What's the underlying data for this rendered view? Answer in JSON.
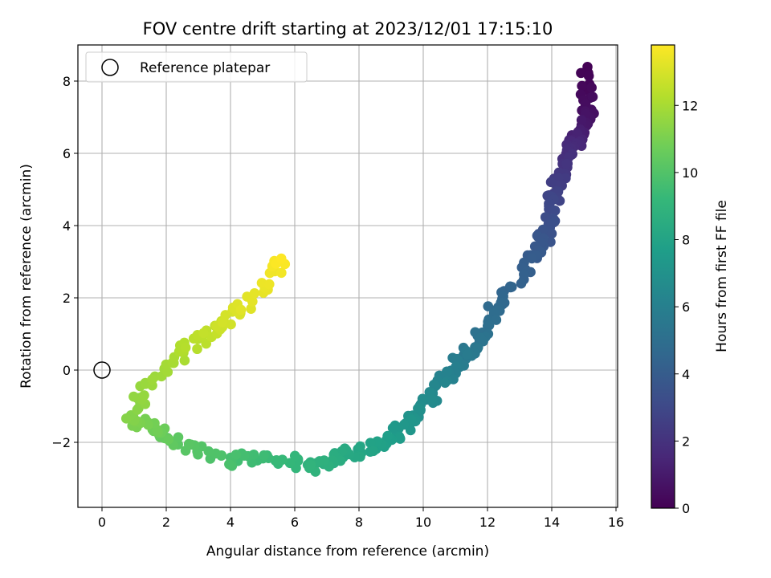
{
  "chart_data": {
    "type": "scatter",
    "title": "FOV centre drift starting at 2023/12/01 17:15:10",
    "xlabel": "Angular distance from reference (arcmin)",
    "ylabel": "Rotation from reference (arcmin)",
    "xlim": [
      -0.75,
      16.05
    ],
    "ylim": [
      -3.8,
      9.0
    ],
    "xticks": [
      0,
      2,
      4,
      6,
      8,
      10,
      12,
      14,
      16
    ],
    "yticks": [
      -2,
      0,
      2,
      4,
      6,
      8
    ],
    "xtick_labels": [
      "0",
      "2",
      "4",
      "6",
      "8",
      "10",
      "12",
      "14",
      "16"
    ],
    "ytick_labels": [
      "−2",
      "0",
      "2",
      "4",
      "6",
      "8"
    ],
    "grid": true,
    "legend": {
      "position": "top-left",
      "entries": [
        "Reference platepar"
      ]
    },
    "reference_point": {
      "x": 0,
      "y": 0,
      "label": "Reference platepar"
    },
    "colormap": "viridis",
    "colorbar": {
      "label": "Hours from first FF file",
      "range": [
        0,
        13.8
      ],
      "ticks": [
        0,
        2,
        4,
        6,
        8,
        10,
        12
      ],
      "tick_labels": [
        "0",
        "2",
        "4",
        "6",
        "8",
        "10",
        "12"
      ]
    },
    "path_waypoints": [
      {
        "h": 0.0,
        "x": 15.05,
        "y": 8.3
      },
      {
        "h": 0.6,
        "x": 15.1,
        "y": 7.1
      },
      {
        "h": 1.2,
        "x": 14.85,
        "y": 6.5
      },
      {
        "h": 1.8,
        "x": 14.6,
        "y": 6.0
      },
      {
        "h": 2.6,
        "x": 14.1,
        "y": 5.0
      },
      {
        "h": 3.3,
        "x": 13.95,
        "y": 4.1
      },
      {
        "h": 4.0,
        "x": 13.4,
        "y": 3.0
      },
      {
        "h": 4.6,
        "x": 12.4,
        "y": 1.9
      },
      {
        "h": 5.2,
        "x": 11.8,
        "y": 0.9
      },
      {
        "h": 6.0,
        "x": 10.9,
        "y": 0.0
      },
      {
        "h": 6.8,
        "x": 9.9,
        "y": -1.1
      },
      {
        "h": 7.6,
        "x": 9.0,
        "y": -1.9
      },
      {
        "h": 8.3,
        "x": 7.7,
        "y": -2.3
      },
      {
        "h": 8.9,
        "x": 6.5,
        "y": -2.7
      },
      {
        "h": 9.3,
        "x": 5.3,
        "y": -2.4
      },
      {
        "h": 9.8,
        "x": 3.8,
        "y": -2.5
      },
      {
        "h": 10.3,
        "x": 2.2,
        "y": -2.0
      },
      {
        "h": 10.8,
        "x": 1.6,
        "y": -1.6
      },
      {
        "h": 11.2,
        "x": 0.8,
        "y": -1.3
      },
      {
        "h": 11.6,
        "x": 1.3,
        "y": -0.6
      },
      {
        "h": 12.0,
        "x": 2.3,
        "y": 0.3
      },
      {
        "h": 12.6,
        "x": 3.4,
        "y": 1.1
      },
      {
        "h": 13.2,
        "x": 4.5,
        "y": 1.8
      },
      {
        "h": 13.5,
        "x": 5.3,
        "y": 2.6
      },
      {
        "h": 13.8,
        "x": 5.6,
        "y": 3.15
      }
    ],
    "point_count": 420
  }
}
